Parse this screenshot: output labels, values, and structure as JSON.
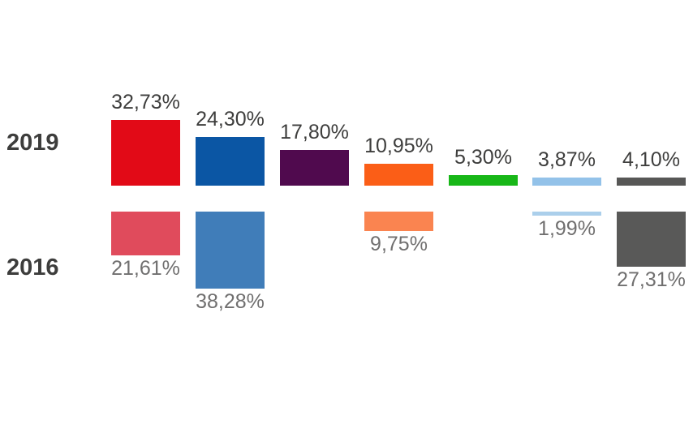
{
  "chart_data": {
    "type": "bar",
    "title": "",
    "unit": "%",
    "decimal_separator": ",",
    "legend": "none",
    "grid": false,
    "layout_hint": "two horizontal rows of bars; 2019 bars grow upward from a shared baseline, 2016 bars grow downward from a shared top line; bar height proportional to value",
    "rows": [
      {
        "year": "2019",
        "label_color": "#3e3e3d"
      },
      {
        "year": "2016",
        "label_color": "#706f6f"
      }
    ],
    "categories": [
      "red",
      "blue",
      "purple",
      "orange",
      "green",
      "light-blue",
      "gray"
    ],
    "series": [
      {
        "name": "2019",
        "values": [
          32.73,
          24.3,
          17.8,
          10.95,
          5.3,
          3.87,
          4.1
        ],
        "labels": [
          "32,73%",
          "24,30%",
          "17,80%",
          "10,95%",
          "5,30%",
          "3,87%",
          "4,10%"
        ],
        "colors": [
          "#e20a17",
          "#0b56a4",
          "#500a4e",
          "#fb5e17",
          "#18b718",
          "#93c2e9",
          "#575756"
        ]
      },
      {
        "name": "2016",
        "values": [
          21.61,
          38.28,
          null,
          9.75,
          null,
          1.99,
          27.31
        ],
        "labels": [
          "21,61%",
          "38,28%",
          null,
          "9,75%",
          null,
          "1,99%",
          "27,31%"
        ],
        "colors": [
          "#e04b5c",
          "#407db9",
          null,
          "#fa8450",
          null,
          "#abcfeb",
          "#595958"
        ]
      }
    ]
  },
  "colors": {
    "background": "#ffffff",
    "year_label": "#3d3d3c",
    "value_label_2019": "#3e3e3d",
    "value_label_2016": "#706f6f"
  }
}
